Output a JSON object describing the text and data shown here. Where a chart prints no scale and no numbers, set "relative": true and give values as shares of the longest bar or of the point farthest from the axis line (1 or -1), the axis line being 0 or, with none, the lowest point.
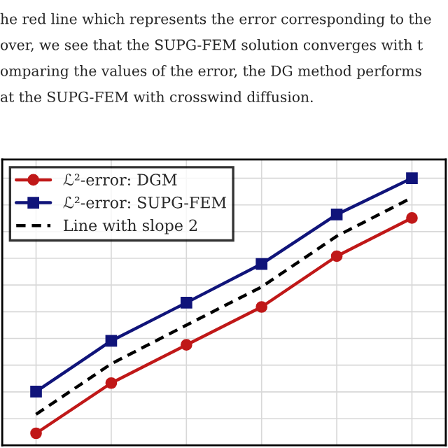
{
  "chart_data": {
    "type": "line",
    "relative": true,
    "annotations": [
      "he red line which represents the error corresponding to the",
      "over, we see that the SUPG-FEM solution converges with t",
      "omparing the values of the error, the DG method performs",
      "at the SUPG-FEM with crosswind diffusion."
    ],
    "categories": [
      null,
      null,
      null,
      null,
      null,
      null
    ],
    "grid": true,
    "legend": "top left",
    "series": [
      {
        "name": "ℒ²-error: DGM",
        "color": "#c01818",
        "marker": "circle",
        "line_style": "solid",
        "values": [
          0.045,
          0.233,
          0.376,
          0.518,
          0.708,
          0.851
        ]
      },
      {
        "name": "ℒ²-error: SUPG-FEM",
        "color": "#10147a",
        "marker": "square",
        "line_style": "solid",
        "values": [
          0.201,
          0.391,
          0.534,
          0.679,
          0.864,
          1
        ]
      },
      {
        "name": "Line with slope 2",
        "color": "#000000",
        "marker": "none",
        "line_style": "dashed",
        "values": [
          0.116,
          0.305,
          0.45,
          0.593,
          0.783,
          0.927
        ]
      }
    ]
  }
}
